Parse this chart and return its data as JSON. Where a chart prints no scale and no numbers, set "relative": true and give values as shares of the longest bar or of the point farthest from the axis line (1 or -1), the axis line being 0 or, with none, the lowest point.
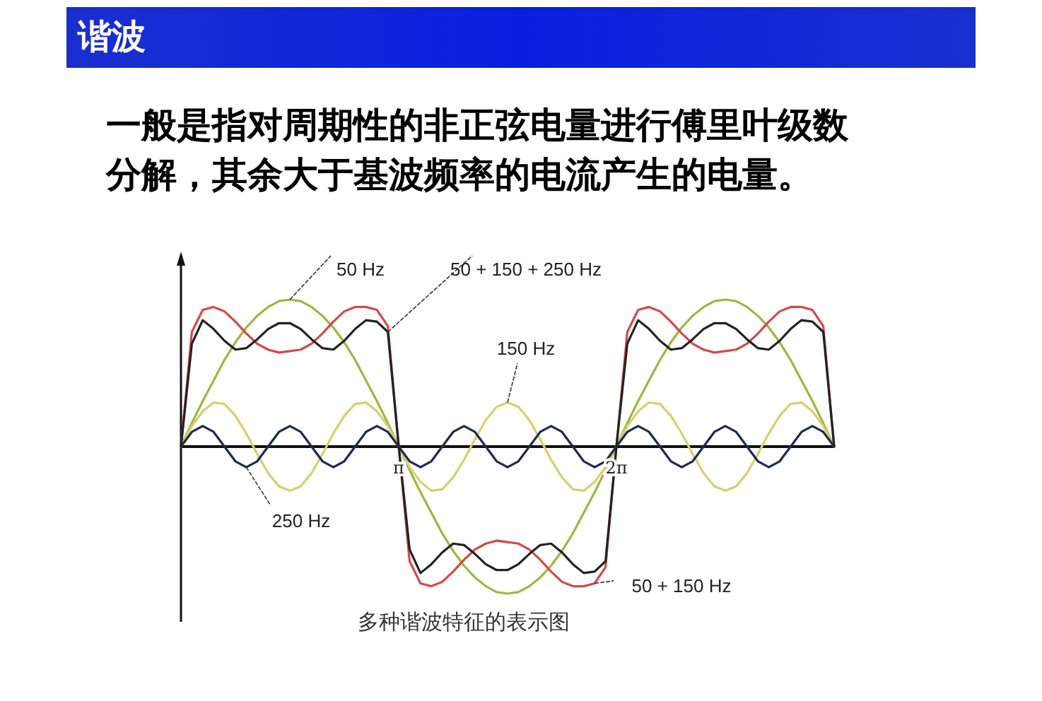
{
  "chart_data": {
    "type": "line",
    "title": "谐波",
    "subtitle": "一般是指对周期性的非正弦电量进行傅里叶级数分解，其余大于基波频率的电流产生的电量。",
    "annotations": [
      "多种谐波特征的表示图"
    ],
    "relative": true,
    "xlim": [
      0,
      9.425
    ],
    "xticks": [
      {
        "value": 3.1416,
        "label": "π"
      },
      {
        "value": 6.2832,
        "label": "2π"
      }
    ],
    "x": [
      0,
      0.157,
      0.314,
      0.471,
      0.628,
      0.785,
      0.942,
      1.1,
      1.257,
      1.414,
      1.571,
      1.728,
      1.885,
      2.042,
      2.199,
      2.356,
      2.513,
      2.67,
      2.827,
      2.985,
      3.142,
      3.299,
      3.456,
      3.613,
      3.77,
      3.927,
      4.084,
      4.241,
      4.398,
      4.555,
      4.712,
      4.869,
      5.027,
      5.184,
      5.341,
      5.498,
      5.655,
      5.812,
      5.969,
      6.126,
      6.283,
      6.44,
      6.597,
      6.754,
      6.912,
      7.069,
      7.226,
      7.383,
      7.54,
      7.697,
      7.854,
      8.011,
      8.168,
      8.325,
      8.482,
      8.639,
      8.796,
      8.954,
      9.111,
      9.268,
      9.425
    ],
    "series": [
      {
        "name": "50 Hz",
        "color": "#9cb840",
        "values": [
          0,
          0.16,
          0.31,
          0.45,
          0.59,
          0.71,
          0.81,
          0.89,
          0.95,
          0.99,
          1,
          0.99,
          0.95,
          0.89,
          0.81,
          0.71,
          0.59,
          0.45,
          0.31,
          0.16,
          0,
          -0.16,
          -0.31,
          -0.45,
          -0.59,
          -0.71,
          -0.81,
          -0.89,
          -0.95,
          -0.99,
          -1,
          -0.99,
          -0.95,
          -0.89,
          -0.81,
          -0.71,
          -0.59,
          -0.45,
          -0.31,
          -0.16,
          0,
          0.16,
          0.31,
          0.45,
          0.59,
          0.71,
          0.81,
          0.89,
          0.95,
          0.99,
          1,
          0.99,
          0.95,
          0.89,
          0.81,
          0.71,
          0.59,
          0.45,
          0.31,
          0.16,
          0
        ]
      },
      {
        "name": "150 Hz",
        "color": "#d9cf6a",
        "values": [
          0,
          0.14,
          0.24,
          0.3,
          0.29,
          0.21,
          0.09,
          -0.05,
          -0.18,
          -0.27,
          -0.3,
          -0.27,
          -0.18,
          -0.05,
          0.09,
          0.21,
          0.29,
          0.3,
          0.24,
          0.14,
          0,
          -0.14,
          -0.24,
          -0.3,
          -0.29,
          -0.21,
          -0.09,
          0.05,
          0.18,
          0.27,
          0.3,
          0.27,
          0.18,
          0.05,
          -0.09,
          -0.21,
          -0.29,
          -0.3,
          -0.24,
          -0.14,
          0,
          0.14,
          0.24,
          0.3,
          0.29,
          0.21,
          0.09,
          -0.05,
          -0.18,
          -0.27,
          -0.3,
          -0.27,
          -0.18,
          -0.05,
          0.09,
          0.21,
          0.29,
          0.3,
          0.24,
          0.14,
          0
        ]
      },
      {
        "name": "250 Hz",
        "color": "#1e2a55",
        "values": [
          0,
          0.1,
          0.14,
          0.1,
          0,
          -0.1,
          -0.14,
          -0.1,
          0,
          0.1,
          0.14,
          0.1,
          0,
          -0.1,
          -0.14,
          -0.1,
          0,
          0.1,
          0.14,
          0.1,
          0,
          -0.1,
          -0.14,
          -0.1,
          0,
          0.1,
          0.14,
          0.1,
          0,
          -0.1,
          -0.14,
          -0.1,
          0,
          0.1,
          0.14,
          0.1,
          0,
          -0.1,
          -0.14,
          -0.1,
          0,
          0.1,
          0.14,
          0.1,
          0,
          -0.1,
          -0.14,
          -0.1,
          0,
          0.1,
          0.14,
          0.1,
          0,
          -0.1,
          -0.14,
          -0.1,
          0,
          0.1,
          0.14,
          0.1,
          0
        ]
      },
      {
        "name": "50 + 150 Hz",
        "color": "#d84848",
        "values": [
          0,
          0.78,
          0.93,
          0.95,
          0.92,
          0.85,
          0.77,
          0.7,
          0.66,
          0.64,
          0.65,
          0.66,
          0.7,
          0.77,
          0.85,
          0.92,
          0.95,
          0.95,
          0.93,
          0.82,
          0,
          -0.78,
          -0.93,
          -0.95,
          -0.92,
          -0.85,
          -0.77,
          -0.7,
          -0.66,
          -0.64,
          -0.65,
          -0.66,
          -0.7,
          -0.77,
          -0.85,
          -0.92,
          -0.95,
          -0.95,
          -0.93,
          -0.82,
          0,
          0.78,
          0.93,
          0.95,
          0.92,
          0.85,
          0.77,
          0.7,
          0.66,
          0.64,
          0.65,
          0.66,
          0.7,
          0.77,
          0.85,
          0.92,
          0.95,
          0.95,
          0.93,
          0.82,
          0
        ]
      },
      {
        "name": "50 + 150 + 250 Hz",
        "color": "#222222",
        "values": [
          0,
          0.7,
          0.86,
          0.8,
          0.72,
          0.66,
          0.67,
          0.73,
          0.8,
          0.84,
          0.84,
          0.8,
          0.73,
          0.67,
          0.66,
          0.72,
          0.8,
          0.86,
          0.85,
          0.78,
          0,
          -0.7,
          -0.86,
          -0.8,
          -0.72,
          -0.66,
          -0.67,
          -0.73,
          -0.8,
          -0.84,
          -0.84,
          -0.8,
          -0.73,
          -0.67,
          -0.66,
          -0.72,
          -0.8,
          -0.86,
          -0.85,
          -0.78,
          0,
          0.7,
          0.86,
          0.8,
          0.72,
          0.66,
          0.67,
          0.73,
          0.8,
          0.84,
          0.84,
          0.8,
          0.73,
          0.67,
          0.66,
          0.72,
          0.8,
          0.86,
          0.85,
          0.78,
          0
        ]
      }
    ]
  }
}
